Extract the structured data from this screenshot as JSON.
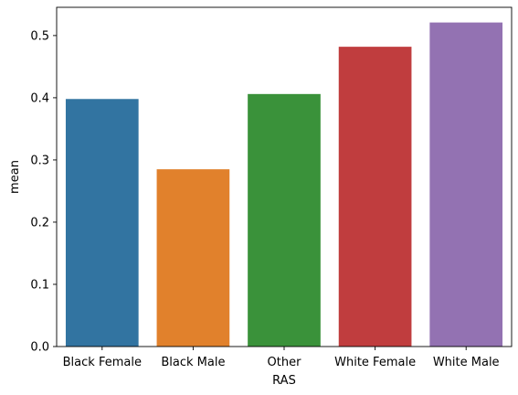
{
  "chart_data": {
    "type": "bar",
    "categories": [
      "Black Female",
      "Black Male",
      "Other",
      "White Female",
      "White Male"
    ],
    "values": [
      0.398,
      0.285,
      0.406,
      0.482,
      0.521
    ],
    "colors": [
      "#3274a1",
      "#e1812c",
      "#3a923a",
      "#c03d3e",
      "#9372b2"
    ],
    "xlabel": "RAS",
    "ylabel": "mean",
    "ylim": [
      0,
      0.5454
    ],
    "yticks": [
      0.0,
      0.1,
      0.2,
      0.3,
      0.4,
      0.5
    ],
    "ytick_labels": [
      "0.0",
      "0.1",
      "0.2",
      "0.3",
      "0.4",
      "0.5"
    ],
    "grid": false
  }
}
